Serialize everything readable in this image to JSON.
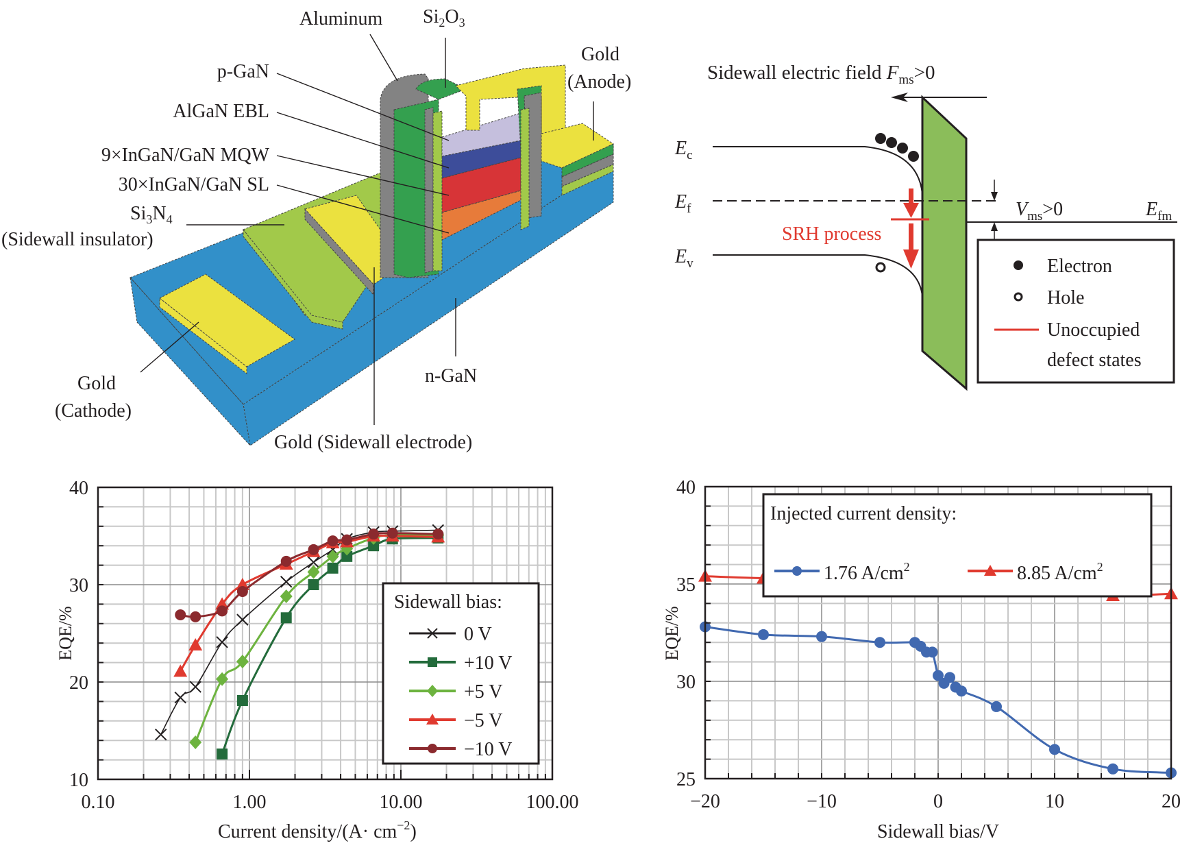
{
  "structure": {
    "labels": {
      "aluminum": "Aluminum",
      "si2o3_main": "Si",
      "si2o3_sub1": "2",
      "si2o3_o": "O",
      "si2o3_sub2": "3",
      "gold_anode_1": "Gold",
      "gold_anode_2": "(Anode)",
      "p_gan": "p-GaN",
      "algan_ebl": "AlGaN EBL",
      "mqw": "9×InGaN/GaN MQW",
      "sl": "30×InGaN/GaN SL",
      "si3n4_si": "Si",
      "si3n4_sub1": "3",
      "si3n4_n": "N",
      "si3n4_sub2": "4",
      "sidewall_insulator": "(Sidewall insulator)",
      "gold_cathode_1": "Gold",
      "gold_cathode_2": "(Cathode)",
      "n_gan": "n-GaN",
      "gold_sidewall": "Gold (Sidewall electrode)"
    },
    "colors": {
      "substrate": "#3290c9",
      "gold": "#ebe13f",
      "insulator": "#a2c94a",
      "aluminum": "#838383",
      "si2o3": "#34a04f",
      "p_gan": "#c5bfdd",
      "ebl": "#3d4d9a",
      "mqw": "#d73437",
      "sl": "#e77b3a"
    }
  },
  "band_diagram": {
    "title_main": "Sidewall electric field ",
    "title_F": "F",
    "title_sub": "ms",
    "title_tail": ">0",
    "ec_E": "E",
    "ec_sub": "c",
    "ef_E": "E",
    "ef_sub": "f",
    "ev_E": "E",
    "ev_sub": "v",
    "efm_E": "E",
    "efm_sub": "fm",
    "vms_V": "V",
    "vms_sub": "ms",
    "vms_tail": ">0",
    "srh": "SRH process",
    "legend": {
      "electron": "Electron",
      "hole": "Hole",
      "defect_1": "Unoccupied",
      "defect_2": "defect states"
    },
    "insulator_color": "#8bbd5a",
    "srh_color": "#e03a2f"
  },
  "chart_data": [
    {
      "type": "line",
      "title": "",
      "xlabel": "Current density/(A· cm",
      "xlabel_sup": "−2",
      "xlabel_tail": ")",
      "ylabel": "EQE/%",
      "xscale": "log",
      "xlim": [
        0.1,
        100
      ],
      "ylim": [
        10,
        40
      ],
      "xticks": [
        "0.10",
        "1.00",
        "10.00",
        "100.00"
      ],
      "yticks": [
        "10",
        "20",
        "30",
        "40"
      ],
      "grid": true,
      "legend_title": "Sidewall bias:",
      "legend_position": "center-right",
      "series": [
        {
          "name": "0 V",
          "marker": "x",
          "color": "#231f20",
          "x": [
            0.26,
            0.35,
            0.44,
            0.66,
            0.9,
            1.75,
            2.65,
            3.55,
            4.4,
            6.6,
            8.8,
            17.6
          ],
          "y": [
            14.6,
            18.4,
            19.5,
            24.1,
            26.4,
            30.3,
            32.3,
            33.6,
            34.7,
            35.4,
            35.5,
            35.6
          ]
        },
        {
          "name": "+10 V",
          "marker": "square",
          "color": "#236b3b",
          "x": [
            0.66,
            0.9,
            1.75,
            2.65,
            3.55,
            4.4,
            6.6,
            8.8,
            17.6
          ],
          "y": [
            12.6,
            18.1,
            26.6,
            30.0,
            31.7,
            32.9,
            34.0,
            34.7,
            34.8
          ]
        },
        {
          "name": "+5 V",
          "marker": "diamond",
          "color": "#6db33f",
          "x": [
            0.44,
            0.66,
            0.9,
            1.75,
            2.65,
            3.55,
            4.4,
            6.6,
            8.8,
            17.6
          ],
          "y": [
            13.8,
            20.3,
            22.1,
            28.8,
            31.3,
            32.9,
            33.7,
            34.8,
            35.1,
            35.1
          ]
        },
        {
          "name": "−5 V",
          "marker": "triangle",
          "color": "#e03a2f",
          "x": [
            0.35,
            0.44,
            0.66,
            0.9,
            1.75,
            2.65,
            3.55,
            4.4,
            6.6,
            8.8,
            17.6
          ],
          "y": [
            21.1,
            23.8,
            28.0,
            30.0,
            32.1,
            33.4,
            34.3,
            34.4,
            35.0,
            35.0,
            34.9
          ]
        },
        {
          "name": "−10 V",
          "marker": "circle",
          "color": "#8b2a2e",
          "x": [
            0.35,
            0.44,
            0.66,
            0.9,
            1.75,
            2.65,
            3.55,
            4.4,
            6.6,
            8.8,
            17.6
          ],
          "y": [
            26.9,
            26.7,
            27.3,
            29.3,
            32.4,
            33.6,
            34.5,
            34.6,
            35.2,
            35.3,
            35.2
          ]
        }
      ]
    },
    {
      "type": "line",
      "title": "",
      "xlabel": "Sidewall bias/V",
      "ylabel": "EQE/%",
      "xlim": [
        -20,
        20
      ],
      "ylim": [
        25,
        40
      ],
      "xticks": [
        "−20",
        "−10",
        "0",
        "10",
        "20"
      ],
      "yticks": [
        "25",
        "30",
        "35",
        "40"
      ],
      "grid": true,
      "legend_title": "Injected current density:",
      "legend_position": "top",
      "series": [
        {
          "name": "1.76 A/cm",
          "name_sup": "2",
          "marker": "circle",
          "color": "#4169b0",
          "x": [
            -20,
            -15,
            -10,
            -5,
            -2,
            -1.5,
            -1,
            -0.5,
            0,
            0.5,
            1,
            1.5,
            2,
            5,
            10,
            15,
            20
          ],
          "y": [
            32.8,
            32.4,
            32.3,
            32.0,
            32.0,
            31.8,
            31.5,
            31.5,
            30.3,
            29.9,
            30.2,
            29.7,
            29.5,
            28.7,
            26.5,
            25.5,
            25.3
          ]
        },
        {
          "name": "8.85 A/cm",
          "name_sup": "2",
          "marker": "triangle",
          "color": "#e03a2f",
          "x": [
            -20,
            -15,
            -10,
            -5,
            -2,
            -1.5,
            -1,
            -0.5,
            0,
            0.5,
            1,
            1.5,
            2,
            5,
            10,
            15,
            20
          ],
          "y": [
            35.4,
            35.3,
            35.3,
            35.2,
            35.2,
            35.3,
            35.3,
            35.3,
            35.4,
            35.3,
            35.3,
            35.2,
            35.1,
            34.9,
            34.6,
            34.4,
            34.5
          ]
        }
      ]
    }
  ]
}
